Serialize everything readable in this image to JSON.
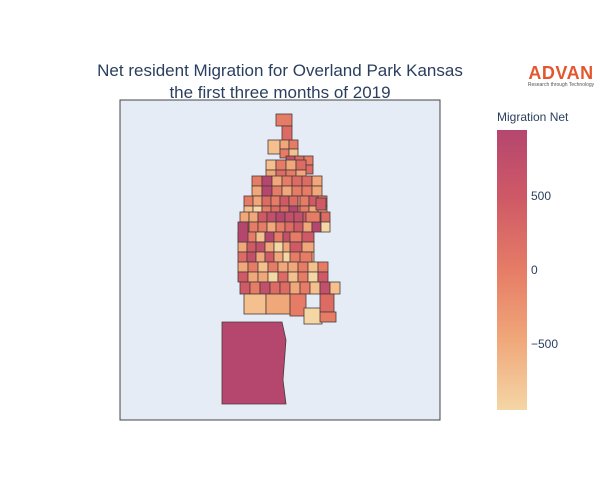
{
  "title_line1": "Net resident Migration for Overland Park Kansas",
  "title_line2": "the first three months of 2019",
  "logo": {
    "text": "ADVAN",
    "tagline": "Research through Technology",
    "color": "#e4572e"
  },
  "colorbar": {
    "title": "Migration Net",
    "min": -950,
    "max": 950,
    "ticks": [
      {
        "value": 500,
        "label": "500"
      },
      {
        "value": 0,
        "label": "0"
      },
      {
        "value": -500,
        "label": "−500"
      }
    ],
    "colorscale": [
      "#f5d6a5",
      "#f0a77a",
      "#e67c66",
      "#cf5a66",
      "#b5466e"
    ]
  },
  "map": {
    "background": "#e5ecf6",
    "border_color": "#444444"
  }
}
